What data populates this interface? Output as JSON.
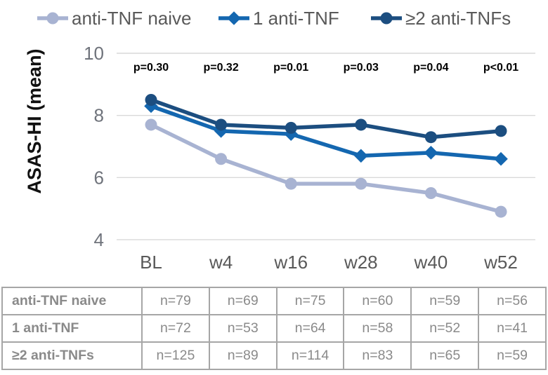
{
  "chart_data": {
    "type": "line",
    "x": [
      "BL",
      "w4",
      "w16",
      "w28",
      "w40",
      "w52"
    ],
    "series": [
      {
        "name": "anti-TNF naive",
        "marker": "circle",
        "color": "#a8b3d2",
        "values": [
          7.7,
          6.6,
          5.8,
          5.8,
          5.5,
          4.9
        ]
      },
      {
        "name": "1 anti-TNF",
        "marker": "diamond",
        "color": "#1467b0",
        "values": [
          8.3,
          7.5,
          7.4,
          6.7,
          6.8,
          6.6
        ]
      },
      {
        "name": "≥2 anti-TNFs",
        "marker": "circle",
        "color": "#1c4e80",
        "values": [
          8.5,
          7.7,
          7.6,
          7.7,
          7.3,
          7.5
        ]
      }
    ],
    "p_values": [
      "p=0.30",
      "p=0.32",
      "p=0.01",
      "p=0.03",
      "p=0.04",
      "p<0.01"
    ],
    "ylabel": "ASAS-HI (mean)",
    "yticks": [
      10,
      8,
      6,
      4
    ],
    "ylim": [
      4,
      10
    ],
    "grid": true,
    "legend_position": "top"
  },
  "table": {
    "rows": [
      {
        "label": "anti-TNF naive",
        "cells": [
          "n=79",
          "n=69",
          "n=75",
          "n=60",
          "n=59",
          "n=56"
        ]
      },
      {
        "label": "1 anti-TNF",
        "cells": [
          "n=72",
          "n=53",
          "n=64",
          "n=58",
          "n=52",
          "n=41"
        ]
      },
      {
        "label": "≥2 anti-TNFs",
        "cells": [
          "n=125",
          "n=89",
          "n=114",
          "n=83",
          "n=65",
          "n=59"
        ]
      }
    ]
  },
  "colors": {
    "grid": "#d9d9d9",
    "tick_label": "#6f737b",
    "axis_label": "#595959",
    "p_value_text": "#000000",
    "ylabel_text": "#111111",
    "legend_text": "#595959",
    "table_border": "#a6a6a6",
    "table_text": "#8a8a8a"
  }
}
